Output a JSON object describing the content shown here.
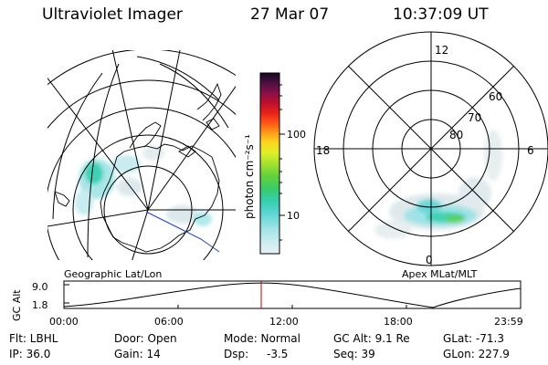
{
  "header": {
    "title": "Ultraviolet Imager",
    "date": "27 Mar 07",
    "time": "10:37:09 UT"
  },
  "colorbar": {
    "unit_label": "photon cm⁻²s⁻¹",
    "ticks": [
      "100",
      "10"
    ]
  },
  "maps": {
    "geographic_label": "Geographic Lat/Lon",
    "apex_label": "Apex MLat/MLT",
    "mlt_labels": {
      "top": "12",
      "left": "18",
      "right": "6",
      "bottom": "0"
    },
    "lat_labels": [
      "60",
      "70",
      "80"
    ]
  },
  "gc_alt_plot": {
    "ylabel": "GC Alt",
    "y_ticks": [
      "9.0",
      "1.8"
    ],
    "x_ticks": [
      "00:00",
      "06:00",
      "12:00",
      "18:00",
      "23:59"
    ],
    "marker_color": "#cc0000"
  },
  "info": {
    "filter": "Flt: LBHL",
    "ip": "IP: 36.0",
    "door": "Door: Open",
    "gain": "Gain: 14",
    "mode": "Mode: Normal",
    "dsp_label": "Dsp:",
    "dsp_value": "-3.5",
    "gc_alt": "GC Alt: 9.1 Re",
    "seq": "Seq: 39",
    "glat": "GLat: -71.3",
    "glon": "GLon: 227.9"
  }
}
